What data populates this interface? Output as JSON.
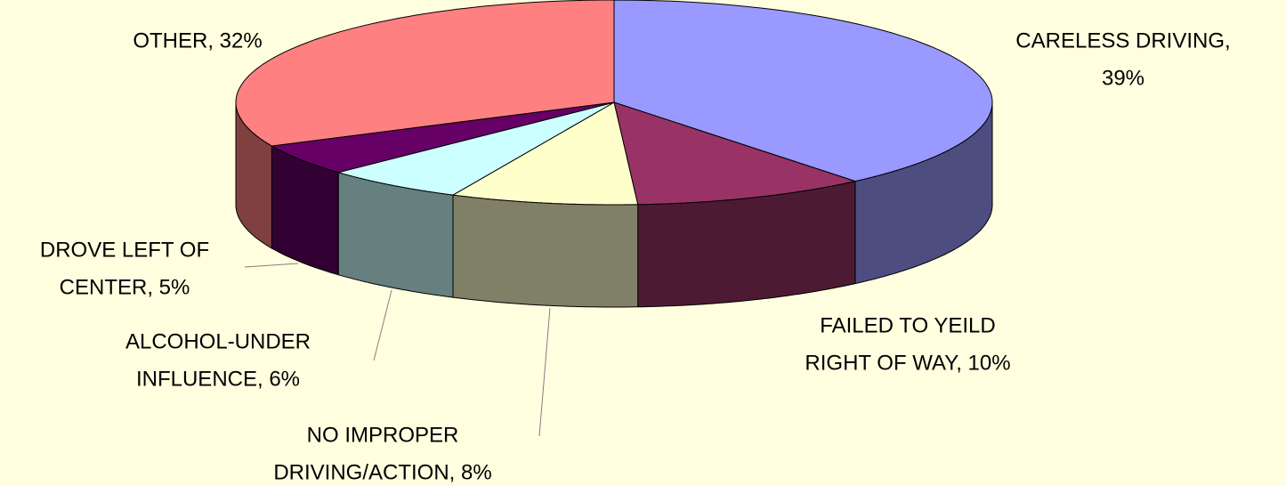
{
  "chart_data": {
    "type": "pie",
    "values": [
      39,
      10,
      8,
      6,
      5,
      32
    ],
    "value_labels": [
      [
        "CARELESS DRIVING,",
        "39%"
      ],
      [
        "FAILED TO YEILD",
        "RIGHT OF WAY, 10%"
      ],
      [
        "NO IMPROPER",
        "DRIVING/ACTION, 8%"
      ],
      [
        "ALCOHOL-UNDER",
        "INFLUENCE, 6%"
      ],
      [
        "DROVE LEFT OF",
        "CENTER, 5%"
      ],
      [
        "OTHER, 32%"
      ]
    ],
    "colors": [
      "#9999ff",
      "#993366",
      "#ffffcc",
      "#ccffff",
      "#660066",
      "#ff8080"
    ]
  }
}
